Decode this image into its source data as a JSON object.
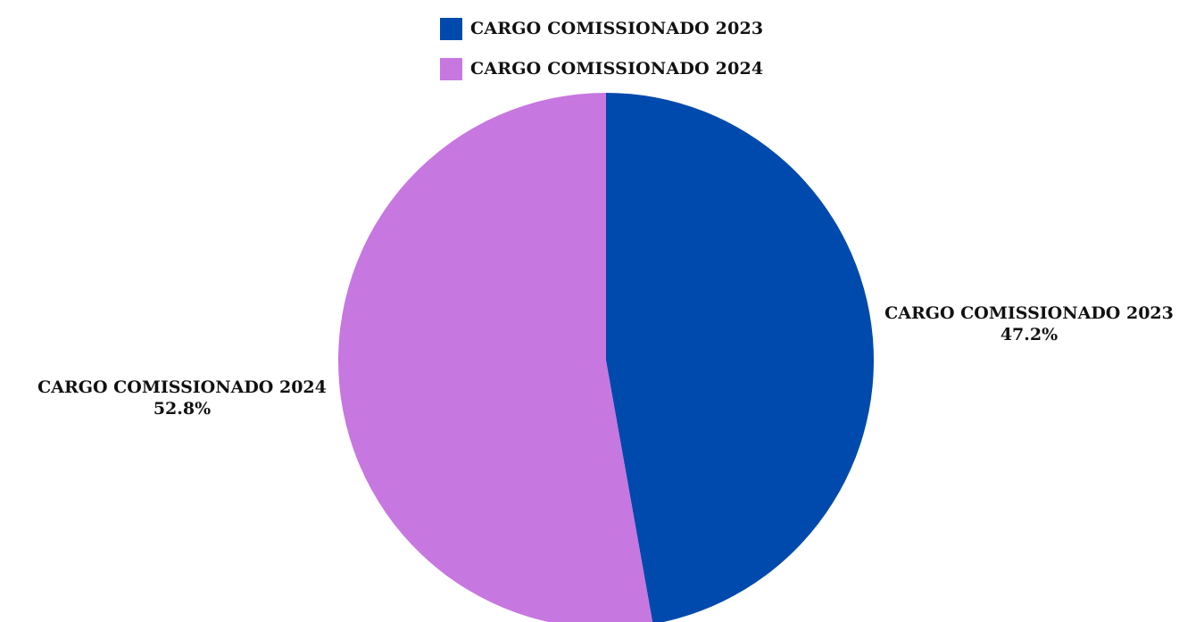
{
  "chart_data": {
    "type": "pie",
    "legend": "top-center",
    "slices": [
      {
        "label": "CARGO COMISSIONADO 2023",
        "percent_label": "47.2%",
        "value": 47.2,
        "color": "#004AAD"
      },
      {
        "label": "CARGO COMISSIONADO 2024",
        "percent_label": "52.8%",
        "value": 52.8,
        "color": "#C777E0"
      }
    ]
  }
}
